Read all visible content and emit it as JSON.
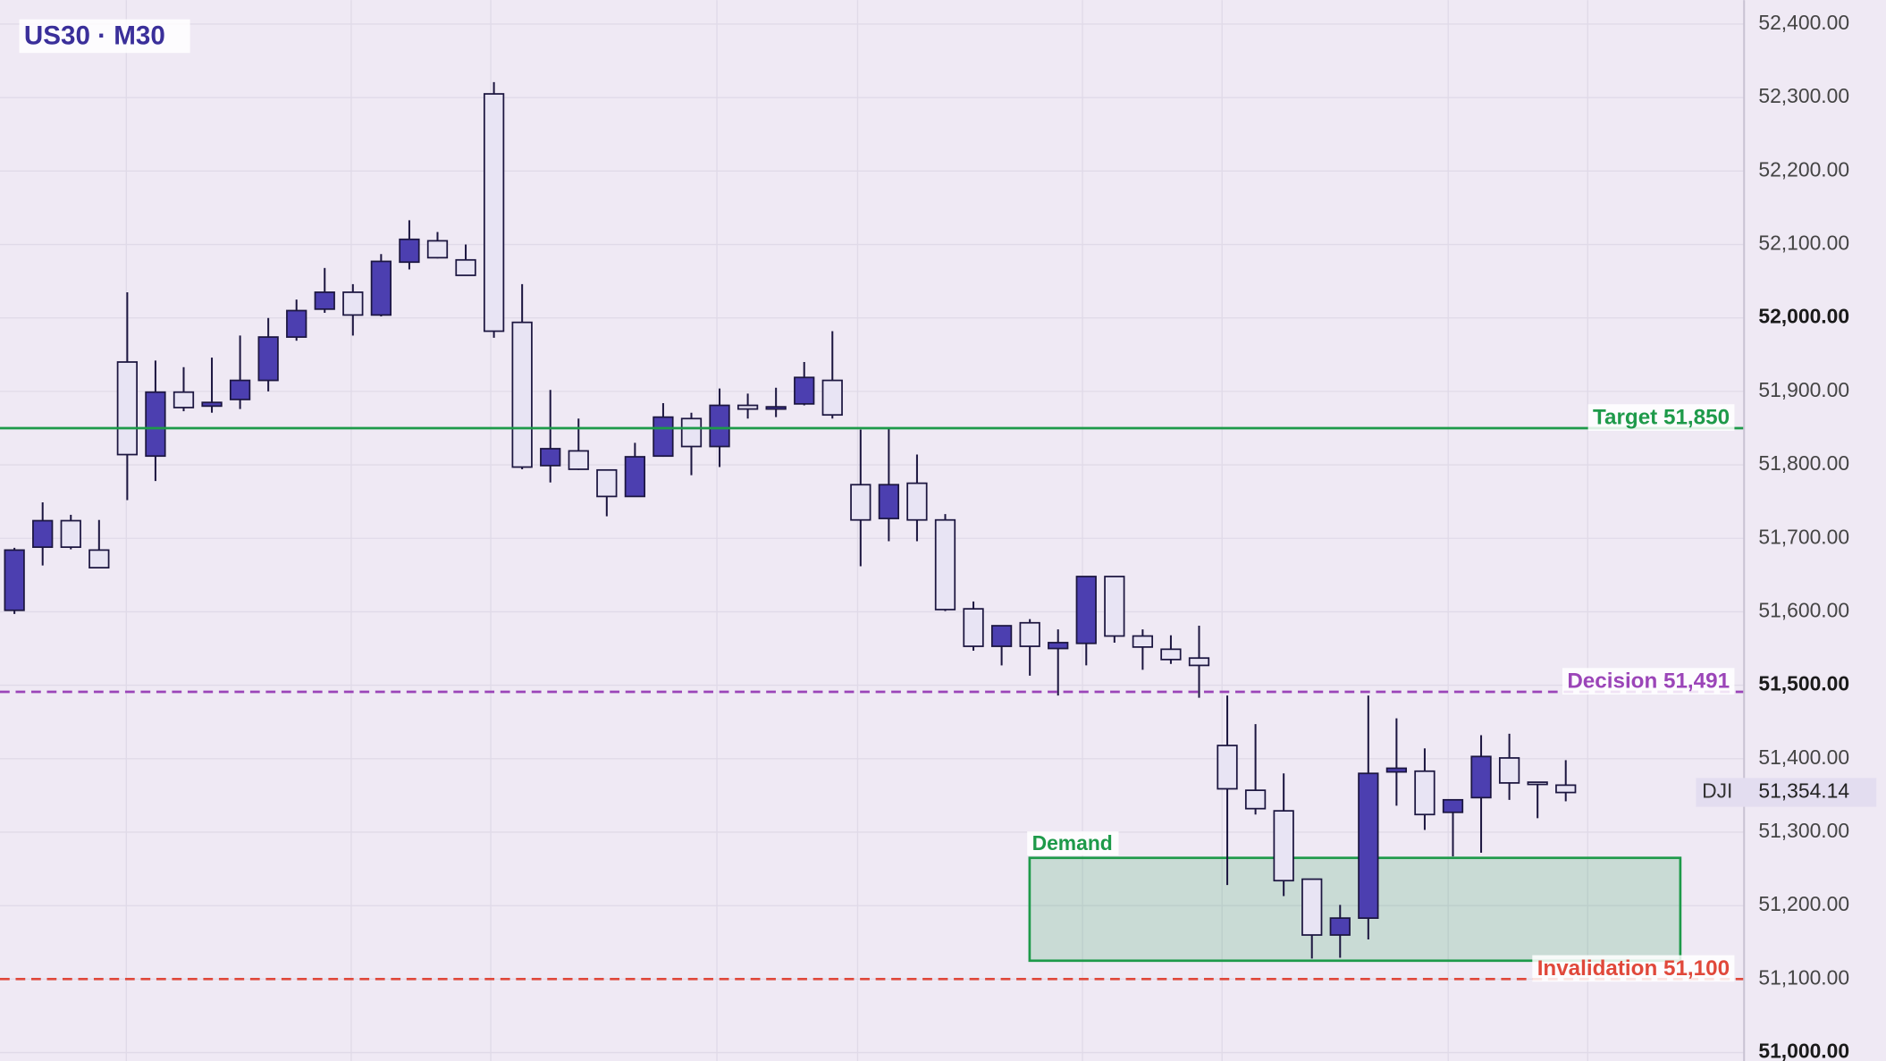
{
  "chart_data": {
    "type": "candlestick",
    "title": "US30 · M30",
    "symbol": "DJI",
    "up_color": "#4c3fb0",
    "down_color": "#e8e4f4",
    "ylim": [
      51000,
      52400
    ],
    "yticks": [
      {
        "value": 51000,
        "label": "51,000.00"
      },
      {
        "value": 51100,
        "label": "51,100.00"
      },
      {
        "value": 51200,
        "label": "51,200.00"
      },
      {
        "value": 51300,
        "label": "51,300.00"
      },
      {
        "value": 51400,
        "label": "51,400.00"
      },
      {
        "value": 51500,
        "label": "51,500.00"
      },
      {
        "value": 51600,
        "label": "51,600.00"
      },
      {
        "value": 51700,
        "label": "51,700.00"
      },
      {
        "value": 51800,
        "label": "51,800.00"
      },
      {
        "value": 51900,
        "label": "51,900.00"
      },
      {
        "value": 52000,
        "label": "52,000.00"
      },
      {
        "value": 52100,
        "label": "52,100.00"
      },
      {
        "value": 52200,
        "label": "52,200.00"
      },
      {
        "value": 52300,
        "label": "52,300.00"
      },
      {
        "value": 52400,
        "label": "52,400.00"
      }
    ],
    "grid": true,
    "series": [
      {
        "open": [
          51602,
          51688,
          51724,
          51684,
          51940,
          51812,
          51899,
          51880,
          51889,
          51915,
          51974,
          52012,
          52035,
          52004,
          52076,
          52105,
          52079,
          52305,
          51994,
          51799,
          51819,
          51793,
          51757,
          51812,
          51863,
          51825,
          51881,
          51876,
          51883,
          51915,
          51773,
          51727,
          51775,
          51725,
          51604,
          51553,
          51585,
          51550,
          51557,
          51648,
          51567,
          51549,
          51537,
          51418,
          51357,
          51329,
          51236,
          51160,
          51183,
          51382,
          51383,
          51327,
          51347,
          51401,
          51368,
          51364
        ],
        "high": [
          51687,
          51749,
          51732,
          51725,
          52035,
          51942,
          51933,
          51946,
          51976,
          52000,
          52025,
          52068,
          52046,
          52087,
          52133,
          52117,
          52100,
          52321,
          52046,
          51902,
          51863,
          51793,
          51830,
          51884,
          51871,
          51904,
          51897,
          51905,
          51940,
          51982,
          51848,
          51851,
          51814,
          51733,
          51614,
          51581,
          51590,
          51576,
          51648,
          51648,
          51576,
          51568,
          51581,
          51486,
          51447,
          51380,
          51236,
          51201,
          51486,
          51455,
          51414,
          51344,
          51432,
          51434,
          51368,
          51398
        ],
        "low": [
          51597,
          51663,
          51685,
          51660,
          51752,
          51778,
          51873,
          51871,
          51876,
          51900,
          51969,
          52007,
          51976,
          52002,
          52066,
          52081,
          52058,
          51973,
          51794,
          51776,
          51793,
          51730,
          51757,
          51811,
          51786,
          51797,
          51863,
          51865,
          51881,
          51863,
          51662,
          51696,
          51696,
          51601,
          51547,
          51527,
          51513,
          51486,
          51527,
          51558,
          51521,
          51529,
          51483,
          51228,
          51324,
          51213,
          51128,
          51129,
          51154,
          51336,
          51303,
          51267,
          51272,
          51344,
          51319,
          51342
        ],
        "close": [
          51684,
          51724,
          51688,
          51660,
          51814,
          51899,
          51878,
          51885,
          51915,
          51974,
          52010,
          52035,
          52004,
          52077,
          52107,
          52082,
          52058,
          51982,
          51797,
          51822,
          51794,
          51757,
          51811,
          51865,
          51825,
          51881,
          51876,
          51879,
          51919,
          51868,
          51725,
          51773,
          51725,
          51603,
          51553,
          51581,
          51553,
          51558,
          51648,
          51567,
          51552,
          51535,
          51527,
          51359,
          51332,
          51234,
          51160,
          51183,
          51380,
          51387,
          51324,
          51344,
          51403,
          51367,
          51365,
          51354
        ]
      }
    ],
    "levels": [
      {
        "label": "Target 51,850",
        "value": 51850,
        "color": "#1e9a4a",
        "style": "solid"
      },
      {
        "label": "Decision 51,491",
        "value": 51491,
        "color": "#9b45b8",
        "style": "dashed"
      },
      {
        "label": "Invalidation 51,100",
        "value": 51100,
        "color": "#e0483a",
        "style": "dashed"
      }
    ],
    "zones": [
      {
        "label": "Demand",
        "top": 51265,
        "bottom": 51125,
        "color": "#1e9a4a"
      }
    ],
    "last_price": {
      "value": 51354.14,
      "label": "51,354.14"
    }
  }
}
